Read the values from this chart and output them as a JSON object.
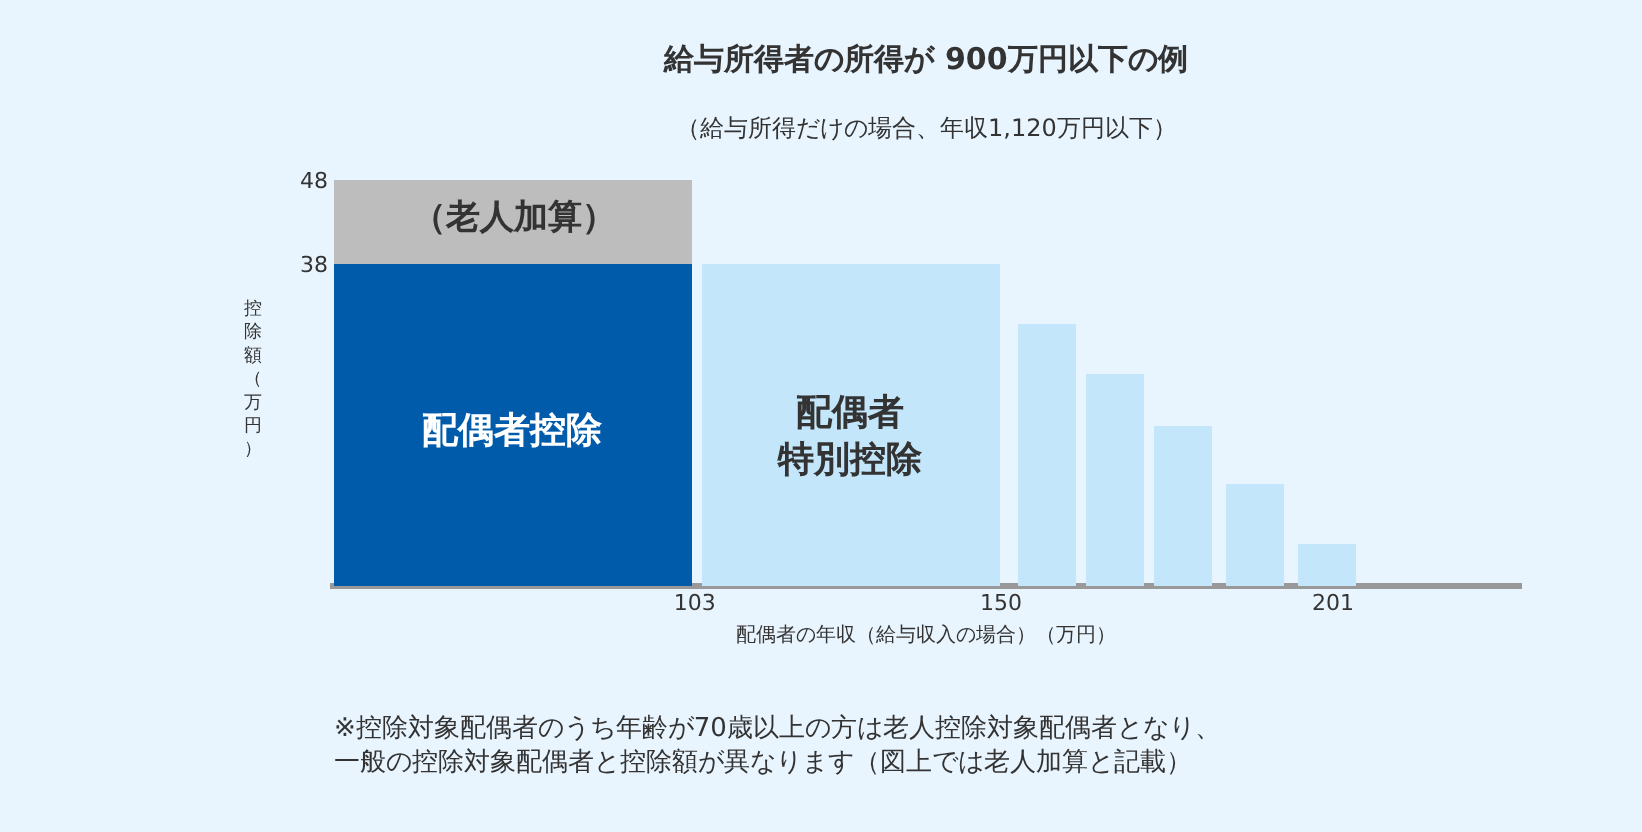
{
  "chart_data": {
    "type": "bar",
    "stacked": true,
    "title": "給与所得者の所得が 900万円以下の例",
    "subtitle": "（給与所得だけの場合、年収1,120万円以下）",
    "xlabel": "配偶者の年収（給与収入の場合）（万円）",
    "ylabel": "控除額（万円）",
    "x": [
      75,
      127,
      157,
      167.5,
      178,
      189,
      200
    ],
    "series": [
      {
        "colors": [
          "#005bab",
          "#c3e6fb",
          "#c3e6fb",
          "#c3e6fb",
          "#c3e6fb",
          "#c3e6fb",
          "#c3e6fb"
        ],
        "values": [
          38,
          38,
          31,
          25,
          19,
          12,
          5
        ]
      },
      {
        "color": "#bdbdbd",
        "values": [
          10,
          null,
          null,
          null,
          null,
          null,
          null
        ]
      }
    ],
    "xlim": [
      47,
      230
    ],
    "xticks": [
      103,
      150,
      201
    ],
    "ylim": [
      0,
      48
    ],
    "yticks": [
      38,
      48
    ],
    "grid": false,
    "annotations": [
      "配偶者控除",
      "配偶者特別控除",
      "（老人加算）",
      "※控除対象配偶者のうち年齢が70歳以上の方は老人控除対象配偶者となり、一般の控除対象配偶者と控除額が異なります（図上では老人加算と記載）"
    ]
  }
}
